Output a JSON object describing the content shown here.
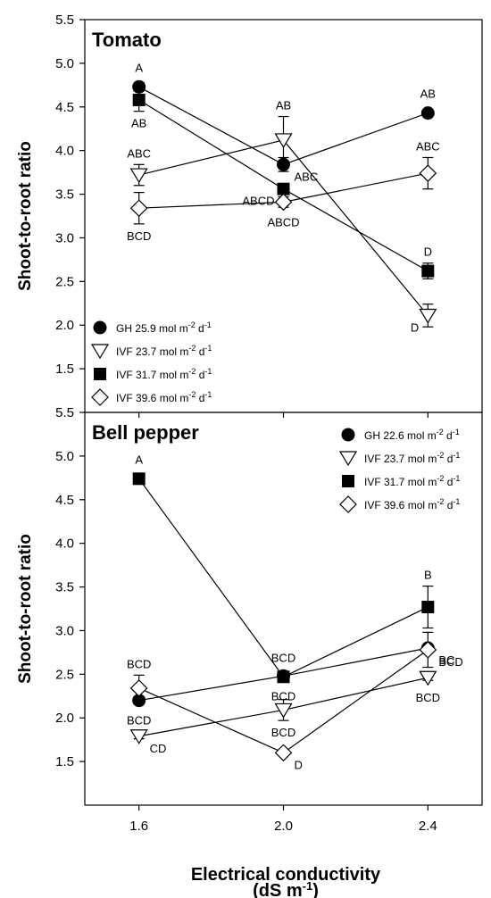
{
  "chart_data": [
    {
      "type": "line",
      "title": "Tomato",
      "xlabel": "",
      "ylabel": "Shoot-to-root ratio",
      "x": [
        1.6,
        2.0,
        2.4
      ],
      "xticks": [
        "1.6",
        "2.0",
        "2.4"
      ],
      "ylim": [
        1.0,
        5.5
      ],
      "yticks": [
        "1.5",
        "2.0",
        "2.5",
        "3.0",
        "3.5",
        "4.0",
        "4.5",
        "5.0",
        "5.5"
      ],
      "grid": false,
      "legend": "bottom-left",
      "series": [
        {
          "name": "GH 25.9 mol m-2 d-1",
          "marker": "circle",
          "values": [
            4.73,
            3.84,
            4.43
          ],
          "err": [
            0.05,
            0.08,
            0.04
          ],
          "letters": [
            "A",
            "ABC",
            "AB"
          ],
          "letter_pos": [
            "above",
            "right",
            "above"
          ]
        },
        {
          "name": "IVF 23.7 mol m-2 d-1",
          "marker": "triangle-down",
          "values": [
            3.72,
            4.12,
            2.11
          ],
          "err": [
            0.12,
            0.27,
            0.13
          ],
          "letters": [
            "ABC",
            "AB",
            "D"
          ],
          "letter_pos": [
            "above",
            "above",
            "left"
          ]
        },
        {
          "name": "IVF 31.7 mol m-2 d-1",
          "marker": "square",
          "values": [
            4.58,
            3.56,
            2.62
          ],
          "err": [
            0.13,
            0.06,
            0.09
          ],
          "letters": [
            "AB",
            "ABCD",
            "D"
          ],
          "letter_pos": [
            "below",
            "left",
            "above"
          ]
        },
        {
          "name": "IVF 39.6 mol m-2 d-1",
          "marker": "diamond",
          "values": [
            3.34,
            3.41,
            3.74
          ],
          "err": [
            0.18,
            0.06,
            0.18
          ],
          "letters": [
            "BCD",
            "ABCD",
            "ABC"
          ],
          "letter_pos": [
            "below",
            "below",
            "above"
          ]
        }
      ]
    },
    {
      "type": "line",
      "title": "Bell pepper",
      "xlabel": "Electrical conductivity (dS m-1)",
      "ylabel": "Shoot-to-root ratio",
      "x": [
        1.6,
        2.0,
        2.4
      ],
      "xticks": [
        "1.6",
        "2.0",
        "2.4"
      ],
      "ylim": [
        1.0,
        5.5
      ],
      "yticks": [
        "1.5",
        "2.0",
        "2.5",
        "3.0",
        "3.5",
        "4.0",
        "4.5",
        "5.0",
        "5.5"
      ],
      "grid": false,
      "legend": "top-right",
      "series": [
        {
          "name": "GH 22.6 mol m-2 d-1",
          "marker": "circle",
          "values": [
            2.2,
            2.48,
            2.8
          ],
          "err": [
            0.04,
            0.04,
            0.04
          ],
          "letters": [
            "BCD",
            "BCD",
            "BC"
          ],
          "letter_pos": [
            "below",
            "below",
            "right"
          ]
        },
        {
          "name": "IVF 23.7 mol m-2 d-1",
          "marker": "triangle-down",
          "values": [
            1.79,
            2.09,
            2.46
          ],
          "err": [
            0.03,
            0.12,
            0.03
          ],
          "letters": [
            "CD",
            "BCD",
            "BCD"
          ],
          "letter_pos": [
            "right",
            "below",
            "below"
          ]
        },
        {
          "name": "IVF 31.7 mol m-2 d-1",
          "marker": "square",
          "values": [
            4.74,
            2.47,
            3.27
          ],
          "err": [
            0.04,
            0.05,
            0.24
          ],
          "letters": [
            "A",
            "BCD",
            "B"
          ],
          "letter_pos": [
            "above",
            "above",
            "above"
          ]
        },
        {
          "name": "IVF 39.6 mol m-2 d-1",
          "marker": "diamond",
          "values": [
            2.34,
            1.6,
            2.78
          ],
          "err": [
            0.15,
            0.03,
            0.2
          ],
          "letters": [
            "BCD",
            "D",
            "BCD"
          ],
          "letter_pos": [
            "above",
            "right",
            "right"
          ]
        }
      ]
    }
  ],
  "x_axis": {
    "label_line1": "Electrical conductivity",
    "label_line2_pre": "(dS m",
    "label_line2_sup": "-1",
    "label_line2_post": ")"
  }
}
